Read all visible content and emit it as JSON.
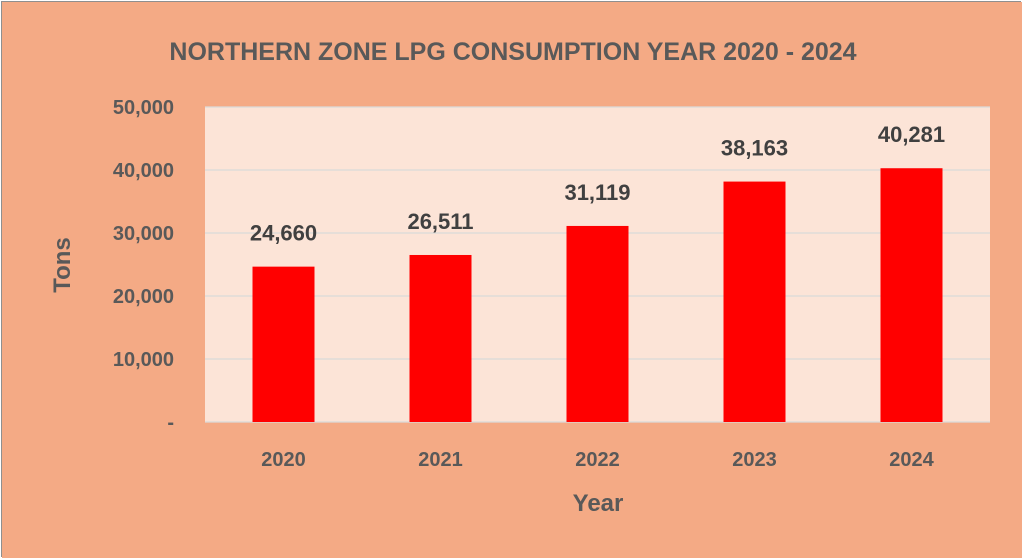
{
  "chart_data": {
    "type": "bar",
    "title": "NORTHERN ZONE LPG CONSUMPTION YEAR 2020 - 2024",
    "xlabel": "Year",
    "ylabel": "Tons",
    "categories": [
      "2020",
      "2021",
      "2022",
      "2023",
      "2024"
    ],
    "values": [
      24660,
      26511,
      31119,
      38163,
      40281
    ],
    "data_labels": [
      "24,660",
      "26,511",
      "31,119",
      "38,163",
      "40,281"
    ],
    "ylim": [
      0,
      50000
    ],
    "yticks": [
      0,
      10000,
      20000,
      30000,
      40000,
      50000
    ],
    "ytick_labels": [
      "-",
      "10,000",
      "20,000",
      "30,000",
      "40,000",
      "50,000"
    ],
    "grid": true,
    "colors": {
      "background": "#f4aa85",
      "plot_area": "#fce4d7",
      "bar": "#ff0000",
      "text": "#595959",
      "label_text": "#404040",
      "grid": "#d9d9d9"
    }
  }
}
